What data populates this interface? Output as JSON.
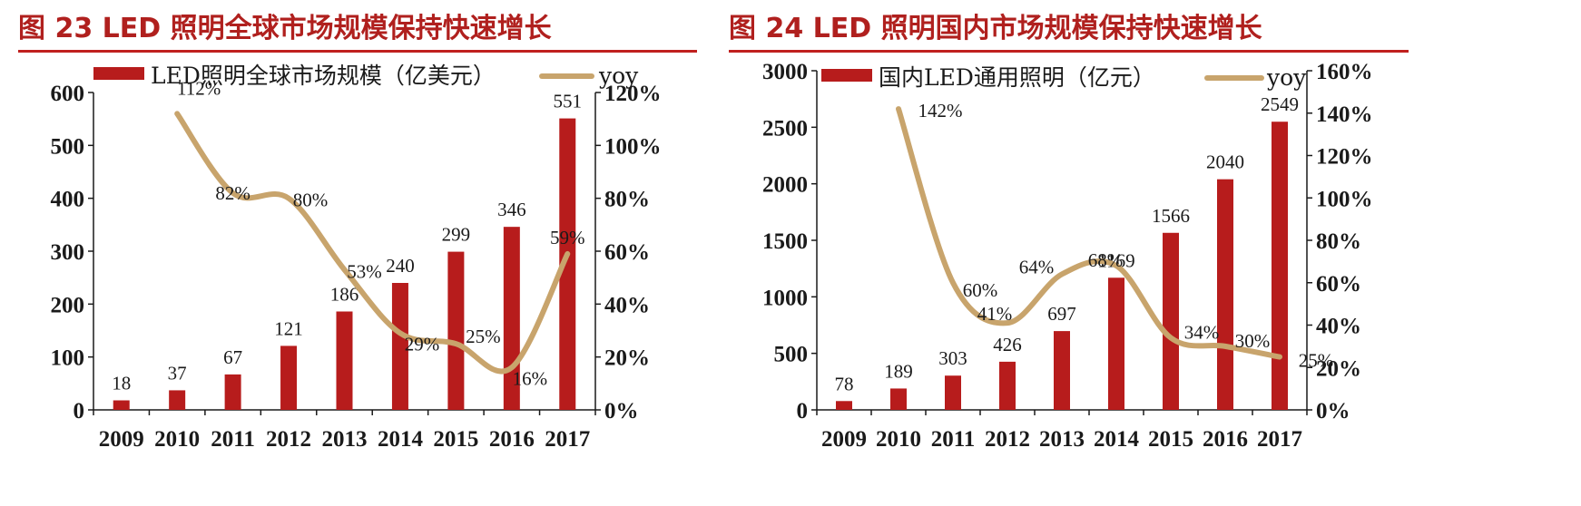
{
  "colors": {
    "title": "#b0201e",
    "bar": "#b71c1c",
    "line": "#c8a46c",
    "axis": "#1a1a1a"
  },
  "chart_data": [
    {
      "type": "bar",
      "title": "图 23   LED 照明全球市场规模保持快速增长",
      "categories": [
        "2009",
        "2010",
        "2011",
        "2012",
        "2013",
        "2014",
        "2015",
        "2016",
        "2017"
      ],
      "series": [
        {
          "name": "LED照明全球市场规模（亿美元）",
          "type": "bar",
          "axis": "left",
          "values": [
            18,
            37,
            67,
            121,
            186,
            240,
            299,
            346,
            551
          ]
        },
        {
          "name": "yoy",
          "type": "line",
          "axis": "right",
          "values": [
            null,
            112,
            82,
            80,
            53,
            29,
            25,
            16,
            59
          ],
          "labels": [
            "",
            "112%",
            "82%",
            "80%",
            "53%",
            "29%",
            "25%",
            "16%",
            "59%"
          ]
        }
      ],
      "y_left": {
        "range": [
          0,
          600
        ],
        "ticks": [
          "0",
          "100",
          "200",
          "300",
          "400",
          "500",
          "600"
        ]
      },
      "y_right": {
        "range": [
          0,
          120
        ],
        "ticks": [
          "0%",
          "20%",
          "40%",
          "60%",
          "80%",
          "100%",
          "120%"
        ]
      },
      "legend": "top"
    },
    {
      "type": "bar",
      "title": "图 24   LED 照明国内市场规模保持快速增长",
      "categories": [
        "2009",
        "2010",
        "2011",
        "2012",
        "2013",
        "2014",
        "2015",
        "2016",
        "2017"
      ],
      "series": [
        {
          "name": "国内LED通用照明（亿元）",
          "type": "bar",
          "axis": "left",
          "values": [
            78,
            189,
            303,
            426,
            697,
            1169,
            1566,
            2040,
            2549
          ]
        },
        {
          "name": "yoy",
          "type": "line",
          "axis": "right",
          "values": [
            null,
            142,
            60,
            41,
            64,
            68,
            34,
            30,
            25
          ],
          "labels": [
            "",
            "142%",
            "60%",
            "41%",
            "64%",
            "68%",
            "34%",
            "30%",
            "25%"
          ]
        }
      ],
      "y_left": {
        "range": [
          0,
          3000
        ],
        "ticks": [
          "0",
          "500",
          "1000",
          "1500",
          "2000",
          "2500",
          "3000"
        ]
      },
      "y_right": {
        "range": [
          0,
          160
        ],
        "ticks": [
          "0%",
          "20%",
          "40%",
          "60%",
          "80%",
          "100%",
          "120%",
          "140%",
          "160%"
        ]
      },
      "legend": "top"
    }
  ]
}
